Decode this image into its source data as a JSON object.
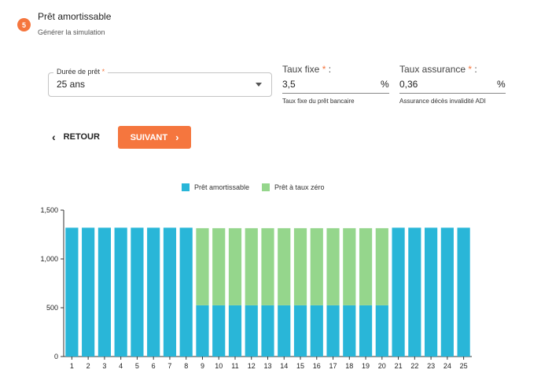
{
  "step": {
    "number": "5",
    "title": "Prêt amortissable",
    "subtitle": "Générer la simulation"
  },
  "form": {
    "duree": {
      "label": "Durée de prêt",
      "required_mark": "*",
      "value": "25 ans"
    },
    "taux_fixe": {
      "label": "Taux fixe",
      "required_mark": "*",
      "suffix": ":",
      "value": "3,5",
      "unit": "%",
      "help": "Taux fixe du prêt bancaire"
    },
    "taux_assurance": {
      "label": "Taux assurance",
      "required_mark": "*",
      "suffix": ":",
      "value": "0,36",
      "unit": "%",
      "help": "Assurance décès invalidité ADI"
    }
  },
  "actions": {
    "back_label": "RETOUR",
    "next_label": "SUIVANT"
  },
  "colors": {
    "accent": "#f5763e",
    "amortissable": "#29b6d8",
    "taux_zero": "#95d68c"
  },
  "chart_data": {
    "type": "bar",
    "stacked": true,
    "categories": [
      "1",
      "2",
      "3",
      "4",
      "5",
      "6",
      "7",
      "8",
      "9",
      "10",
      "11",
      "12",
      "13",
      "14",
      "15",
      "16",
      "17",
      "18",
      "19",
      "20",
      "21",
      "22",
      "23",
      "24",
      "25"
    ],
    "series": [
      {
        "name": "Prêt amortissable",
        "values": [
          1320,
          1320,
          1320,
          1320,
          1320,
          1320,
          1320,
          1320,
          525,
          525,
          525,
          525,
          525,
          525,
          525,
          525,
          525,
          525,
          525,
          525,
          1320,
          1320,
          1320,
          1320,
          1320
        ]
      },
      {
        "name": "Prêt à taux zéro",
        "values": [
          0,
          0,
          0,
          0,
          0,
          0,
          0,
          0,
          790,
          790,
          790,
          790,
          790,
          790,
          790,
          790,
          790,
          790,
          790,
          790,
          0,
          0,
          0,
          0,
          0
        ]
      }
    ],
    "yticks": [
      "0",
      "500",
      "1,000",
      "1,500"
    ],
    "ylim": [
      0,
      1500
    ],
    "legend_position": "top",
    "grid": false
  }
}
